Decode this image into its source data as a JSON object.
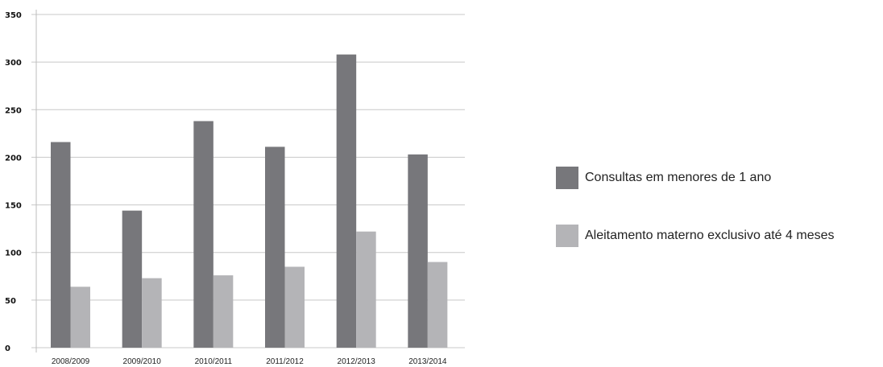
{
  "chart_data": {
    "type": "bar",
    "categories": [
      "2008/2009",
      "2009/2010",
      "2010/2011",
      "2011/2012",
      "2012/2013",
      "2013/2014"
    ],
    "series": [
      {
        "name": "Consultas em menores de 1 ano",
        "color": "#77777b",
        "values": [
          216,
          144,
          238,
          211,
          308,
          203
        ]
      },
      {
        "name": "Aleitamento materno exclusivo até 4 meses",
        "color": "#b4b4b7",
        "values": [
          64,
          73,
          76,
          85,
          122,
          90
        ]
      }
    ],
    "yticks": [
      "0",
      "50",
      "100",
      "150",
      "200",
      "250",
      "300",
      "350"
    ],
    "ylim": [
      0,
      350
    ],
    "grid": true,
    "legend_position": "right",
    "title": "",
    "xlabel": "",
    "ylabel": ""
  }
}
